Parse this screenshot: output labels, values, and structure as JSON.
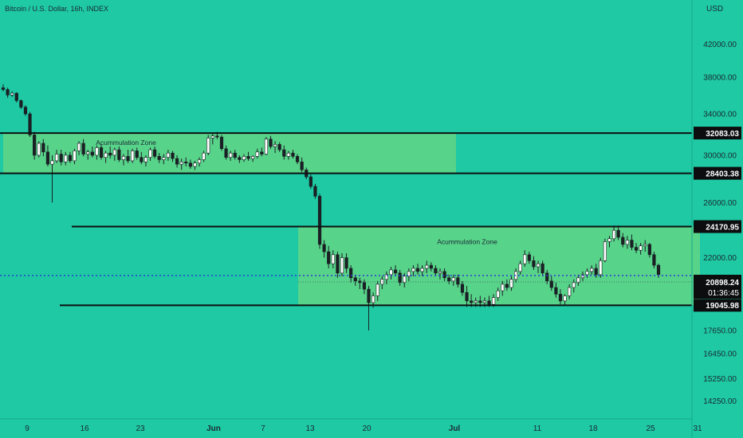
{
  "header": {
    "title": "Bitcoin / U.S. Dollar, 16h, INDEX"
  },
  "colors": {
    "background": "#1ec9a4",
    "zone_fill": "#58d38a",
    "text": "#1b2a33",
    "dotted_line": "#2a3fcf"
  },
  "chart_data": {
    "type": "candlestick",
    "title": "Bitcoin / U.S. Dollar, 16h, INDEX",
    "y_axis": {
      "unit_label": "USD",
      "scale": "log",
      "ticks": [
        "42000.00",
        "38000.00",
        "34000.00",
        "30000.00",
        "26000.00",
        "22000.00",
        "17650.00",
        "16450.00",
        "15250.00",
        "14250.00"
      ],
      "range": [
        13700,
        48000
      ]
    },
    "x_axis": {
      "ticks": [
        "9",
        "16",
        "23",
        "Jun",
        "7",
        "13",
        "20",
        "Jul",
        "11",
        "18",
        "25",
        "31"
      ]
    },
    "zones": [
      {
        "label": "Acummulation Zone",
        "low": 28403.38,
        "high": 32083.03,
        "from": "May 8",
        "to": "Jul 1"
      },
      {
        "label": "Acummulation Zone",
        "low": 19045.98,
        "high": 24170.95,
        "from": "Jun 12",
        "to": "Jul 31"
      }
    ],
    "levels": [
      32083.03,
      28403.38,
      24170.95,
      19045.98
    ],
    "current_price": "20898.24",
    "countdown": "01:36:45",
    "candles_ohlc": [
      [
        36800,
        37200,
        36400,
        36600
      ],
      [
        36600,
        36800,
        35700,
        36000
      ],
      [
        36000,
        36400,
        35800,
        36200
      ],
      [
        36200,
        36300,
        35200,
        35400
      ],
      [
        35400,
        35500,
        34500,
        34700
      ],
      [
        34700,
        34900,
        33800,
        34000
      ],
      [
        34000,
        34200,
        31700,
        31900
      ],
      [
        31900,
        32200,
        29600,
        30000
      ],
      [
        30000,
        31300,
        29800,
        31100
      ],
      [
        31100,
        31500,
        29900,
        30300
      ],
      [
        30300,
        30900,
        29000,
        29200
      ],
      [
        29200,
        30000,
        26000,
        29500
      ],
      [
        29500,
        30500,
        29300,
        30100
      ],
      [
        30100,
        30500,
        29100,
        29400
      ],
      [
        29400,
        30300,
        29100,
        30000
      ],
      [
        30000,
        30300,
        29300,
        29500
      ],
      [
        29500,
        30600,
        29200,
        30400
      ],
      [
        30400,
        31300,
        30000,
        31100
      ],
      [
        31100,
        31500,
        29900,
        30100
      ],
      [
        30100,
        30500,
        29600,
        30300
      ],
      [
        30300,
        30800,
        29800,
        30000
      ],
      [
        30000,
        30900,
        29600,
        30700
      ],
      [
        30700,
        31000,
        29600,
        29800
      ],
      [
        29800,
        30400,
        29300,
        30200
      ],
      [
        30200,
        30800,
        29700,
        30000
      ],
      [
        30000,
        30700,
        29500,
        30500
      ],
      [
        30500,
        30800,
        29400,
        29600
      ],
      [
        29600,
        30100,
        29100,
        29900
      ],
      [
        29900,
        30500,
        29300,
        29500
      ],
      [
        29500,
        30600,
        29300,
        30400
      ],
      [
        30400,
        30700,
        29600,
        29800
      ],
      [
        29800,
        30300,
        29200,
        29400
      ],
      [
        29400,
        30000,
        29000,
        29800
      ],
      [
        29800,
        30700,
        29500,
        30500
      ],
      [
        30500,
        30800,
        29700,
        29900
      ],
      [
        29900,
        30200,
        29300,
        29600
      ],
      [
        29600,
        30100,
        29200,
        29800
      ],
      [
        29800,
        30500,
        29500,
        30200
      ],
      [
        30200,
        30400,
        29400,
        29700
      ],
      [
        29700,
        30000,
        28900,
        29200
      ],
      [
        29200,
        29700,
        28700,
        29400
      ],
      [
        29400,
        29800,
        29000,
        29300
      ],
      [
        29300,
        29600,
        28800,
        29000
      ],
      [
        29000,
        29500,
        28700,
        29300
      ],
      [
        29300,
        29800,
        29000,
        29600
      ],
      [
        29600,
        30400,
        29400,
        30200
      ],
      [
        30200,
        31900,
        30000,
        31600
      ],
      [
        31600,
        32100,
        31000,
        31800
      ],
      [
        31800,
        32200,
        31500,
        31700
      ],
      [
        31700,
        31900,
        30400,
        30600
      ],
      [
        30600,
        30900,
        29600,
        29800
      ],
      [
        29800,
        30400,
        29500,
        30200
      ],
      [
        30200,
        30500,
        29600,
        29800
      ],
      [
        29800,
        30000,
        29300,
        29600
      ],
      [
        29600,
        30100,
        29400,
        29900
      ],
      [
        29900,
        30300,
        29500,
        29700
      ],
      [
        29700,
        30000,
        29400,
        29900
      ],
      [
        29900,
        30600,
        29700,
        30300
      ],
      [
        30300,
        30700,
        29900,
        30100
      ],
      [
        30100,
        31700,
        30000,
        31500
      ],
      [
        31500,
        31800,
        30600,
        30800
      ],
      [
        30800,
        31300,
        30200,
        31000
      ],
      [
        31000,
        31200,
        30300,
        30500
      ],
      [
        30500,
        30900,
        29600,
        29900
      ],
      [
        29900,
        30400,
        29600,
        30200
      ],
      [
        30200,
        30500,
        29700,
        29900
      ],
      [
        29900,
        30100,
        29200,
        29400
      ],
      [
        29400,
        29800,
        28500,
        28700
      ],
      [
        28700,
        28900,
        27900,
        28100
      ],
      [
        28100,
        28300,
        27100,
        27300
      ],
      [
        27300,
        27500,
        26300,
        26500
      ],
      [
        26500,
        26700,
        22600,
        22900
      ],
      [
        22900,
        23200,
        22000,
        22400
      ],
      [
        22400,
        22800,
        21300,
        21600
      ],
      [
        21600,
        22500,
        21300,
        22200
      ],
      [
        22200,
        22400,
        20700,
        21000
      ],
      [
        21000,
        22300,
        20800,
        22000
      ],
      [
        22000,
        22300,
        21000,
        21300
      ],
      [
        21300,
        21500,
        20400,
        20700
      ],
      [
        20700,
        20900,
        20200,
        20500
      ],
      [
        20500,
        20700,
        20000,
        20400
      ],
      [
        20400,
        20600,
        19700,
        20000
      ],
      [
        20000,
        20200,
        17650,
        19200
      ],
      [
        19200,
        19800,
        18900,
        19600
      ],
      [
        19600,
        20500,
        19300,
        20300
      ],
      [
        20300,
        20800,
        20000,
        20600
      ],
      [
        20600,
        21100,
        20300,
        20900
      ],
      [
        20900,
        21400,
        20600,
        21200
      ],
      [
        21200,
        21500,
        20800,
        21000
      ],
      [
        21000,
        21200,
        20200,
        20400
      ],
      [
        20400,
        21000,
        20100,
        20800
      ],
      [
        20800,
        21300,
        20500,
        21100
      ],
      [
        21100,
        21500,
        20800,
        21300
      ],
      [
        21300,
        21600,
        20900,
        21100
      ],
      [
        21100,
        21500,
        20800,
        21300
      ],
      [
        21300,
        21800,
        21000,
        21500
      ],
      [
        21500,
        21700,
        21100,
        21300
      ],
      [
        21300,
        21500,
        20800,
        21000
      ],
      [
        21000,
        21300,
        20600,
        21100
      ],
      [
        21100,
        21300,
        20500,
        20700
      ],
      [
        20700,
        20900,
        20300,
        20500
      ],
      [
        20500,
        20900,
        20200,
        20700
      ],
      [
        20700,
        20900,
        20100,
        20300
      ],
      [
        20300,
        20500,
        19600,
        19800
      ],
      [
        19800,
        20200,
        18950,
        19300
      ],
      [
        19300,
        19700,
        18950,
        19200
      ],
      [
        19200,
        19500,
        18950,
        19300
      ],
      [
        19300,
        19600,
        18950,
        19200
      ],
      [
        19200,
        19500,
        18950,
        19300
      ],
      [
        19300,
        19600,
        18950,
        19100
      ],
      [
        19100,
        19700,
        18950,
        19500
      ],
      [
        19500,
        20100,
        19300,
        19900
      ],
      [
        19900,
        20500,
        19600,
        20300
      ],
      [
        20300,
        20600,
        19900,
        20100
      ],
      [
        20100,
        20800,
        19900,
        20600
      ],
      [
        20600,
        21300,
        20400,
        21100
      ],
      [
        21100,
        21800,
        20900,
        21600
      ],
      [
        21600,
        22500,
        21400,
        22200
      ],
      [
        22200,
        22400,
        21600,
        21800
      ],
      [
        21800,
        22100,
        21200,
        21400
      ],
      [
        21400,
        21800,
        21000,
        21600
      ],
      [
        21600,
        21800,
        20800,
        21000
      ],
      [
        21000,
        21200,
        20300,
        20500
      ],
      [
        20500,
        20800,
        19900,
        20100
      ],
      [
        20100,
        20400,
        19500,
        19700
      ],
      [
        19700,
        20000,
        19100,
        19300
      ],
      [
        19300,
        19700,
        19050,
        19600
      ],
      [
        19600,
        20300,
        19400,
        20100
      ],
      [
        20100,
        20600,
        19800,
        20400
      ],
      [
        20400,
        20900,
        20200,
        20700
      ],
      [
        20700,
        21100,
        20500,
        20900
      ],
      [
        20900,
        21300,
        20700,
        21100
      ],
      [
        21100,
        21500,
        20900,
        21300
      ],
      [
        21300,
        21600,
        20700,
        20900
      ],
      [
        20900,
        22000,
        20700,
        21800
      ],
      [
        21800,
        23300,
        21700,
        23100
      ],
      [
        23100,
        23500,
        22700,
        23300
      ],
      [
        23300,
        24250,
        23100,
        23900
      ],
      [
        23900,
        24250,
        23200,
        23400
      ],
      [
        23400,
        23700,
        22700,
        22900
      ],
      [
        22900,
        23500,
        22600,
        23200
      ],
      [
        23200,
        23600,
        22500,
        22700
      ],
      [
        22700,
        23000,
        22300,
        22500
      ],
      [
        22500,
        23000,
        22200,
        22800
      ],
      [
        22800,
        23200,
        22400,
        22900
      ],
      [
        22900,
        23000,
        22000,
        22200
      ],
      [
        22200,
        22400,
        21300,
        21500
      ],
      [
        21500,
        21600,
        20700,
        20900
      ]
    ]
  }
}
